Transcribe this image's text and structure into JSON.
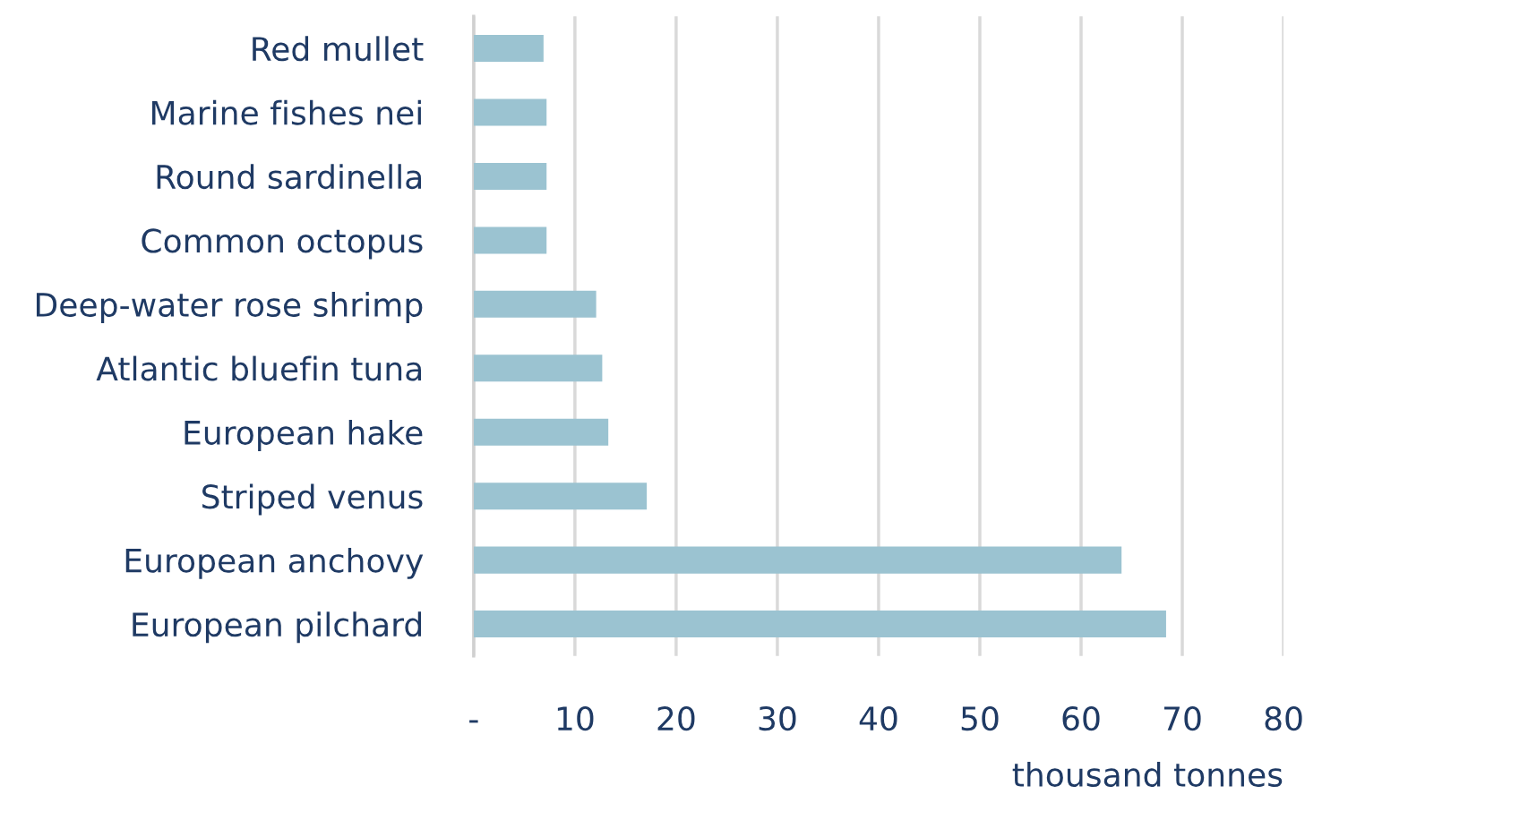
{
  "chart_data": {
    "type": "bar",
    "orientation": "horizontal",
    "xlabel": "thousand tonnes",
    "categories": [
      "Red mullet",
      "Marine fishes nei",
      "Round sardinella",
      "Common octopus",
      "Deep-water rose shrimp",
      "Atlantic bluefin tuna",
      "European hake",
      "Striped venus",
      "European anchovy",
      "European pilchard"
    ],
    "values": [
      6.9,
      7.2,
      7.2,
      7.2,
      12.1,
      12.7,
      13.3,
      17.1,
      64.0,
      68.4
    ],
    "color": "#9bc3d1",
    "xlim": [
      0,
      80
    ],
    "xticks": [
      {
        "value": 0,
        "label": "-"
      },
      10,
      20,
      30,
      40,
      50,
      60,
      70,
      80
    ],
    "grid": "x"
  }
}
